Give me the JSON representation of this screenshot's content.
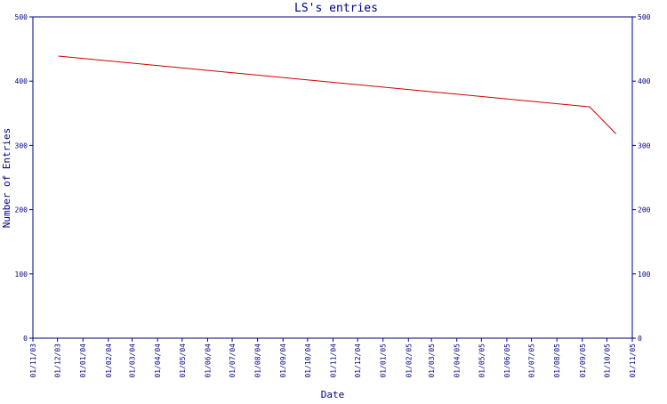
{
  "chart_data": {
    "type": "line",
    "title": "LS's entries",
    "xlabel": "Date",
    "ylabel": "Number of Entries",
    "ylim": [
      0,
      500
    ],
    "yticks": [
      0,
      100,
      200,
      300,
      400,
      500
    ],
    "x_start": "01/11/03",
    "x_end": "01/11/05",
    "xticks": [
      "01/11/03",
      "01/12/03",
      "01/01/04",
      "01/02/04",
      "01/03/04",
      "01/04/04",
      "01/05/04",
      "01/06/04",
      "01/07/04",
      "01/08/04",
      "01/09/04",
      "01/10/04",
      "01/11/04",
      "01/12/04",
      "01/01/05",
      "01/02/05",
      "01/03/05",
      "01/04/05",
      "01/05/05",
      "01/06/05",
      "01/07/05",
      "01/08/05",
      "01/09/05",
      "01/10/05",
      "01/11/05"
    ],
    "grid": false,
    "y_axis_right": true,
    "series": [
      {
        "color": "#cc0000",
        "x": [
          "2003-12-02",
          "2005-09-10",
          "2005-10-12"
        ],
        "y": [
          439,
          360,
          318
        ]
      }
    ]
  },
  "colors": {
    "axis": "#000080",
    "text": "#000080",
    "line": "#cc0000",
    "background": "#ffffff"
  }
}
